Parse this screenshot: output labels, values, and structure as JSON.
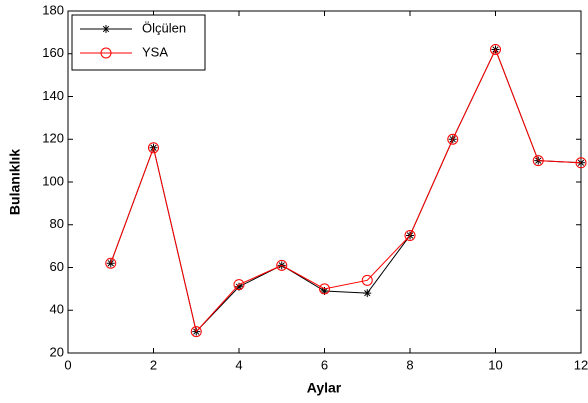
{
  "chart_data": {
    "type": "line",
    "x": [
      1,
      2,
      3,
      4,
      5,
      6,
      7,
      8,
      9,
      10,
      11,
      12
    ],
    "series": [
      {
        "name": "Ölçülen",
        "color": "#000000",
        "marker": "asterisk",
        "values": [
          62,
          116,
          30,
          51,
          61,
          49,
          48,
          75,
          120,
          162,
          110,
          109
        ]
      },
      {
        "name": "YSA",
        "color": "#ff0000",
        "marker": "circle",
        "values": [
          62,
          116,
          30,
          52,
          61,
          50,
          54,
          75,
          120,
          162,
          110,
          109
        ]
      }
    ],
    "xlabel": "Aylar",
    "ylabel": "Bulanıklık",
    "xlim": [
      0,
      12
    ],
    "xticks": [
      0,
      2,
      4,
      6,
      8,
      10,
      12
    ],
    "ylim": [
      20,
      180
    ],
    "yticks": [
      20,
      40,
      60,
      80,
      100,
      120,
      140,
      160,
      180
    ],
    "legend": "upper-left"
  }
}
